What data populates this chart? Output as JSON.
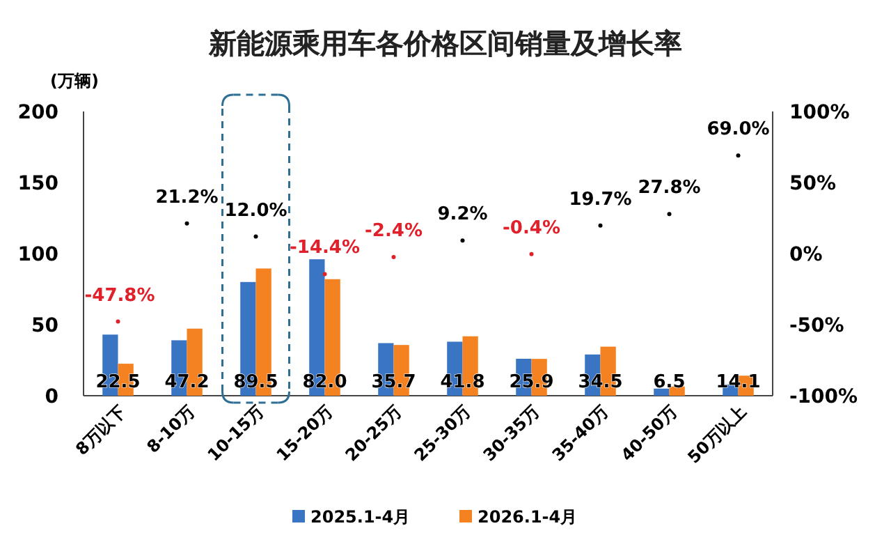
{
  "chart_data": {
    "type": "bar",
    "title": "新能源乘用车各价格区间销量及增长率",
    "ylabel": "(万辆)",
    "categories": [
      "8万以下",
      "8-10万",
      "10-15万",
      "15-20万",
      "20-25万",
      "25-30万",
      "30-35万",
      "35-40万",
      "40-50万",
      "50万以上"
    ],
    "series": [
      {
        "name": "2025.1-4月",
        "color": "#3a75c4",
        "values": [
          43,
          39,
          80,
          96,
          37,
          38,
          26,
          29,
          5,
          8
        ]
      },
      {
        "name": "2026.1-4月",
        "color": "#f58220",
        "values": [
          22.5,
          47.2,
          89.5,
          82.0,
          35.7,
          41.8,
          25.9,
          34.5,
          6.5,
          14.1
        ],
        "value_labels": [
          "22.5",
          "47.2",
          "89.5",
          "82.0",
          "35.7",
          "41.8",
          "25.9",
          "34.5",
          "6.5",
          "14.1"
        ]
      },
      {
        "type": "scatter",
        "axis": "y2",
        "marker": "circle",
        "values": [
          -47.8,
          21.2,
          12.0,
          -14.4,
          -2.4,
          9.2,
          -0.4,
          19.7,
          27.8,
          69.0
        ],
        "value_labels": [
          "-47.8%",
          "21.2%",
          "12.0%",
          "-14.4%",
          "-2.4%",
          "9.2%",
          "-0.4%",
          "19.7%",
          "27.8%",
          "69.0%"
        ],
        "colors": [
          "#e0202a",
          "#000000",
          "#000000",
          "#e0202a",
          "#e0202a",
          "#000000",
          "#e0202a",
          "#000000",
          "#000000",
          "#000000"
        ]
      }
    ],
    "ylim": [
      0,
      200
    ],
    "yticks": [
      0,
      50,
      100,
      150,
      200
    ],
    "y2lim": [
      -100,
      100
    ],
    "y2ticks": [
      {
        "value": -100,
        "label": "-100%"
      },
      {
        "value": -50,
        "label": "-50%"
      },
      {
        "value": 0,
        "label": "0%"
      },
      {
        "value": 50,
        "label": "50%"
      },
      {
        "value": 100,
        "label": "100%"
      }
    ],
    "grid": false,
    "legend": "bottom"
  }
}
